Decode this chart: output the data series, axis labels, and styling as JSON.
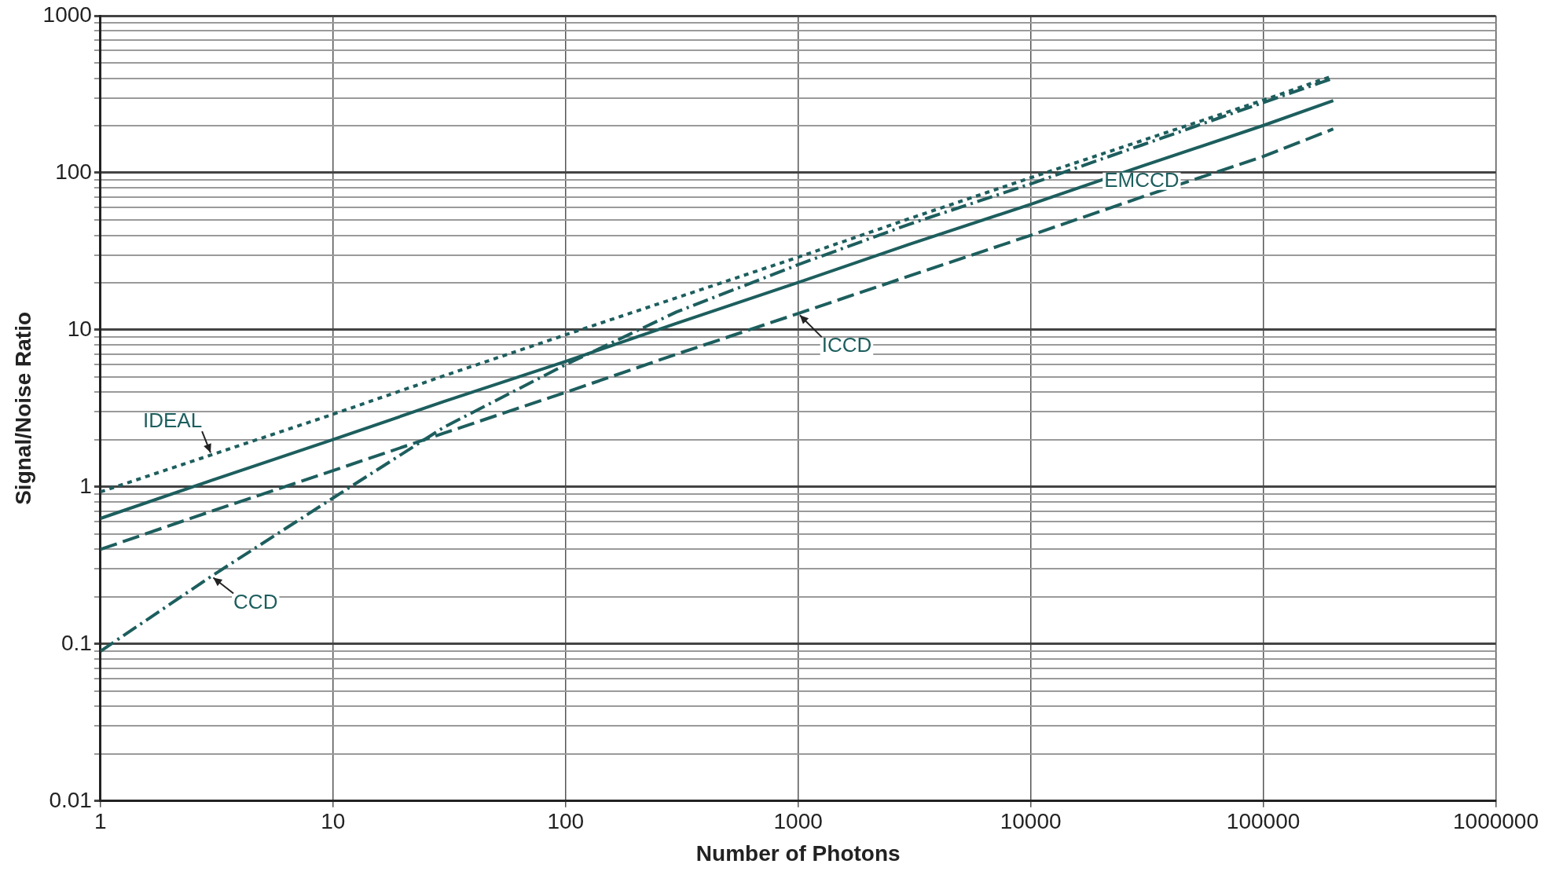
{
  "chart_data": {
    "type": "line",
    "xlabel": "Number of Photons",
    "ylabel": "Signal/Noise Ratio",
    "log": "xy",
    "x": [
      1,
      3,
      10,
      30,
      100,
      300,
      1000,
      3000,
      10000,
      30000,
      100000,
      200000
    ],
    "series": [
      {
        "name": "IDEAL",
        "color": "#1d5e5e",
        "line_style": "dotted",
        "values": [
          0.93,
          1.6,
          2.9,
          5.1,
          9.3,
          16,
          29,
          51,
          93,
          160,
          290,
          415
        ]
      },
      {
        "name": "EMCCD",
        "color": "#1d5e5e",
        "line_style": "solid",
        "values": [
          0.63,
          1.1,
          2.0,
          3.5,
          6.3,
          11,
          20,
          35,
          63,
          110,
          200,
          288
        ]
      },
      {
        "name": "ICCD",
        "color": "#1d5e5e",
        "line_style": "dashed",
        "values": [
          0.4,
          0.7,
          1.27,
          2.2,
          4.0,
          7.0,
          12.7,
          22,
          40,
          70,
          127,
          190
        ]
      },
      {
        "name": "CCD",
        "color": "#1d5e5e",
        "line_style": "dashdot",
        "values": [
          0.09,
          0.27,
          0.85,
          2.4,
          6.0,
          13,
          26,
          47,
          85,
          150,
          280,
          400
        ]
      }
    ],
    "xlim": [
      1,
      1000000
    ],
    "xticks": [
      1,
      10,
      100,
      1000,
      10000,
      100000,
      1000000
    ],
    "ylim": [
      0.01,
      1000
    ],
    "yticks": [
      0.01,
      {
        "value": 0.02,
        "label": null
      },
      {
        "value": 0.03,
        "label": null
      },
      {
        "value": 0.04,
        "label": null
      },
      {
        "value": 0.05,
        "label": null
      },
      {
        "value": 0.06,
        "label": null
      },
      {
        "value": 0.07,
        "label": null
      },
      {
        "value": 0.08,
        "label": null
      },
      {
        "value": 0.09,
        "label": null
      },
      0.1,
      {
        "value": 0.2,
        "label": null
      },
      {
        "value": 0.3,
        "label": null
      },
      {
        "value": 0.4,
        "label": null
      },
      {
        "value": 0.5,
        "label": null
      },
      {
        "value": 0.6,
        "label": null
      },
      {
        "value": 0.7,
        "label": null
      },
      {
        "value": 0.8,
        "label": null
      },
      {
        "value": 0.9,
        "label": null
      },
      1,
      {
        "value": 2,
        "label": null
      },
      {
        "value": 3,
        "label": null
      },
      {
        "value": 4,
        "label": null
      },
      {
        "value": 5,
        "label": null
      },
      {
        "value": 6,
        "label": null
      },
      {
        "value": 7,
        "label": null
      },
      {
        "value": 8,
        "label": null
      },
      {
        "value": 9,
        "label": null
      },
      10,
      {
        "value": 20,
        "label": null
      },
      {
        "value": 30,
        "label": null
      },
      {
        "value": 40,
        "label": null
      },
      {
        "value": 50,
        "label": null
      },
      {
        "value": 60,
        "label": null
      },
      {
        "value": 70,
        "label": null
      },
      {
        "value": 80,
        "label": null
      },
      {
        "value": 90,
        "label": null
      },
      100,
      {
        "value": 200,
        "label": null
      },
      {
        "value": 300,
        "label": null
      },
      {
        "value": 400,
        "label": null
      },
      {
        "value": 500,
        "label": null
      },
      {
        "value": 600,
        "label": null
      },
      {
        "value": 700,
        "label": null
      },
      {
        "value": 800,
        "label": null
      },
      {
        "value": 900,
        "label": null
      },
      1000
    ],
    "grid": true,
    "legend": false,
    "marker": "none"
  }
}
